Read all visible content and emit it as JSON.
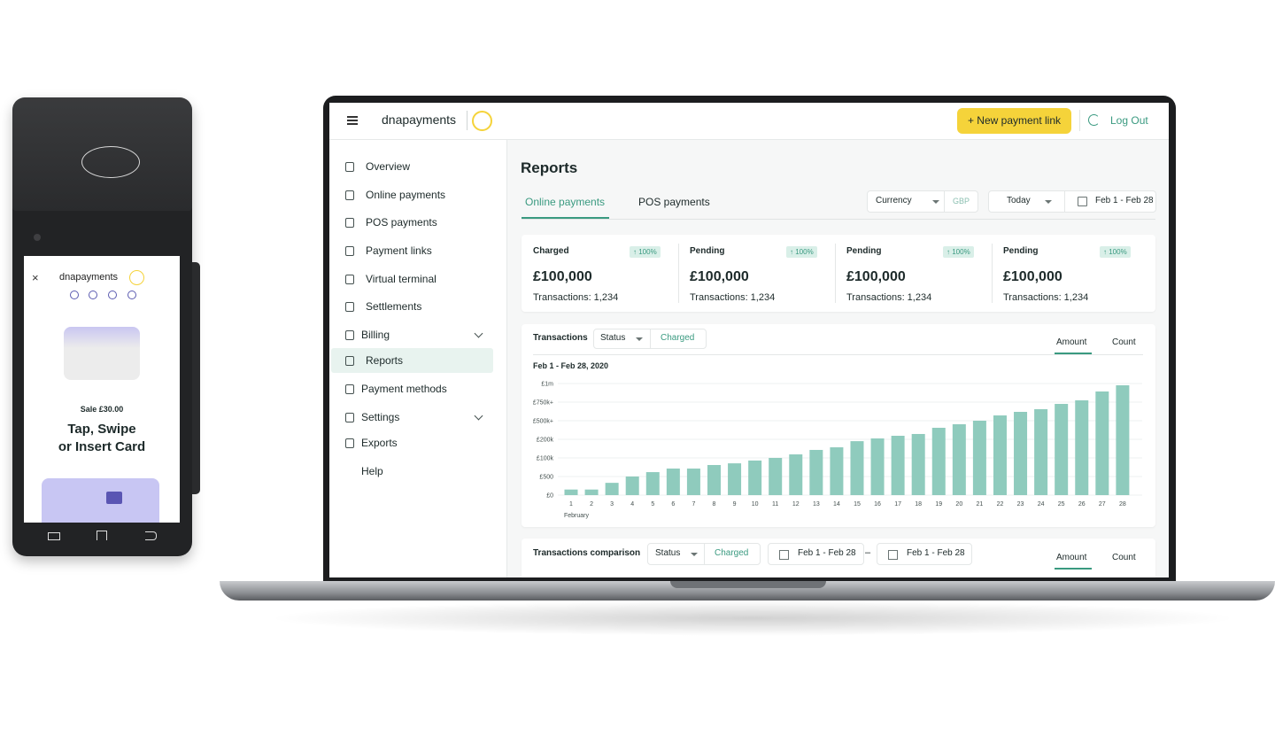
{
  "pos_terminal": {
    "brand": "dnapayments",
    "sale": "Sale £30.00",
    "prompt": [
      "Tap, Swipe",
      "or Insert Card"
    ]
  },
  "header": {
    "brand": "dnapayments",
    "new_link_button": "+ New payment link",
    "logout": "Log Out"
  },
  "sidebar": {
    "items": [
      "Overview",
      "Online payments",
      "POS payments",
      "Payment links",
      "Virtual terminal",
      "Settlements",
      "Billing",
      "Reports",
      "Payment methods",
      "Settings",
      "Exports",
      "Help"
    ]
  },
  "reports": {
    "title": "Reports",
    "tabs": [
      "Online payments",
      "POS payments"
    ],
    "filters": {
      "currency_label": "Currency",
      "currency": "GBP",
      "period": "Today",
      "date_range": "Feb 1 - Feb 28"
    }
  },
  "summary_cards": [
    {
      "label": "Charged",
      "change": "↑ 100%",
      "amount": "£100,000",
      "transactions": "Transactions: 1,234"
    },
    {
      "label": "Pending",
      "change": "↑ 100%",
      "amount": "£100,000",
      "transactions": "Transactions: 1,234"
    },
    {
      "label": "Pending",
      "change": "↑ 100%",
      "amount": "£100,000",
      "transactions": "Transactions: 1,234"
    },
    {
      "label": "Pending",
      "change": "↑ 100%",
      "amount": "£100,000",
      "transactions": "Transactions: 1,234"
    }
  ],
  "transactions_panel": {
    "title": "Transactions",
    "filter_label": "Status",
    "filter_value": "Charged",
    "toggles": [
      "Amount",
      "Count"
    ]
  },
  "chart_data": {
    "type": "bar",
    "subtitle": "Feb 1 - Feb 28, 2020",
    "x_axis_label": "February",
    "categories": [
      "1",
      "2",
      "3",
      "4",
      "5",
      "6",
      "7",
      "8",
      "9",
      "10",
      "11",
      "12",
      "13",
      "14",
      "15",
      "16",
      "17",
      "18",
      "19",
      "20",
      "21",
      "22",
      "23",
      "24",
      "25",
      "26",
      "27",
      "28"
    ],
    "values": [
      150,
      150,
      330,
      500,
      24000,
      43000,
      43000,
      62000,
      71000,
      86000,
      100000,
      119000,
      143000,
      157000,
      190000,
      214000,
      257000,
      286000,
      386000,
      443000,
      500000,
      571000,
      619000,
      655000,
      726000,
      774000,
      893000,
      976000
    ],
    "color": "#8fcbbd",
    "ylim": [
      0,
      1000000
    ],
    "yticks": [
      {
        "value": 0,
        "label": "£0"
      },
      {
        "value": 500,
        "label": "£500"
      },
      {
        "value": 100000,
        "label": "£100k"
      },
      {
        "value": 200000,
        "label": "£200k"
      },
      {
        "value": 500000,
        "label": "£500k+"
      },
      {
        "value": 750000,
        "label": "£750k+"
      },
      {
        "value": 1000000,
        "label": "£1m"
      }
    ],
    "grid": true
  },
  "comparison_panel": {
    "title": "Transactions comparison",
    "filter_label": "Status",
    "filter_value": "Charged",
    "range_a": "Feb 1 - Feb 28",
    "separator": "–",
    "range_b": "Feb 1 - Feb 28",
    "toggles": [
      "Amount",
      "Count"
    ]
  }
}
